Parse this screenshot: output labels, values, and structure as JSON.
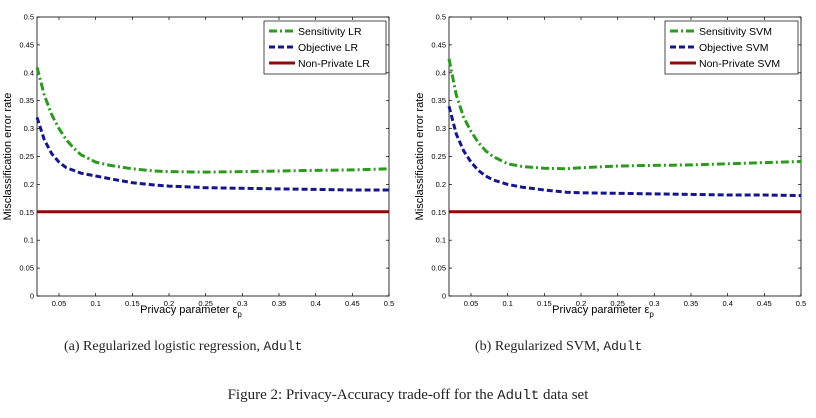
{
  "colors": {
    "sensitivity": "#2b9a1e",
    "objective": "#16168c",
    "nonprivate": "#8b0a0a"
  },
  "captions": {
    "a": {
      "label": "(a)",
      "text": "Regularized logistic regression,",
      "dataset": "Adult"
    },
    "b": {
      "label": "(b)",
      "text": "Regularized SVM,",
      "dataset": "Adult"
    },
    "figure": {
      "prefix": "Figure 2: Privacy-Accuracy trade-off for the",
      "dataset": "Adult",
      "suffix": "data set"
    }
  },
  "chart_data": [
    {
      "type": "line",
      "xlabel": "Privacy parameter ε",
      "xlabel_subscript": "p",
      "ylabel": "Misclassification error rate",
      "xlim": [
        0.02,
        0.5
      ],
      "ylim": [
        0,
        0.5
      ],
      "xticks": [
        0.05,
        0.1,
        0.15,
        0.2,
        0.25,
        0.3,
        0.35,
        0.4,
        0.45,
        0.5
      ],
      "xtick_labels": [
        "0.05",
        "0.1",
        "0.15",
        "0.2",
        "0.25",
        "0.3",
        "0.35",
        "0.4",
        "0.45",
        "0.5"
      ],
      "yticks": [
        0,
        0.05,
        0.1,
        0.15,
        0.2,
        0.25,
        0.3,
        0.35,
        0.4,
        0.45,
        0.5
      ],
      "ytick_labels": [
        "0",
        "0.05",
        "0.1",
        "0.15",
        "0.2",
        "0.25",
        "0.3",
        "0.35",
        "0.4",
        "0.45",
        "0.5"
      ],
      "legend_position": "top-right",
      "grid": false,
      "series": [
        {
          "name": "Sensitivity LR",
          "style": "dashdot",
          "color_key": "sensitivity",
          "x": [
            0.02,
            0.03,
            0.04,
            0.05,
            0.06,
            0.07,
            0.08,
            0.1,
            0.12,
            0.15,
            0.18,
            0.2,
            0.25,
            0.3,
            0.35,
            0.4,
            0.45,
            0.5
          ],
          "y": [
            0.41,
            0.36,
            0.325,
            0.3,
            0.28,
            0.265,
            0.253,
            0.24,
            0.234,
            0.228,
            0.224,
            0.223,
            0.222,
            0.223,
            0.224,
            0.225,
            0.226,
            0.228
          ]
        },
        {
          "name": "Objective LR",
          "style": "dashed",
          "color_key": "objective",
          "x": [
            0.02,
            0.03,
            0.04,
            0.05,
            0.06,
            0.07,
            0.08,
            0.1,
            0.12,
            0.15,
            0.18,
            0.2,
            0.25,
            0.3,
            0.35,
            0.4,
            0.45,
            0.5
          ],
          "y": [
            0.32,
            0.28,
            0.255,
            0.24,
            0.23,
            0.225,
            0.22,
            0.215,
            0.21,
            0.203,
            0.199,
            0.197,
            0.194,
            0.193,
            0.192,
            0.191,
            0.19,
            0.19
          ]
        },
        {
          "name": "Non-Private LR",
          "style": "solid",
          "color_key": "nonprivate",
          "x": [
            0.02,
            0.5
          ],
          "y": [
            0.151,
            0.151
          ]
        }
      ]
    },
    {
      "type": "line",
      "xlabel": "Privacy parameter ε",
      "xlabel_subscript": "p",
      "ylabel": "Misclassification error rate",
      "xlim": [
        0.02,
        0.5
      ],
      "ylim": [
        0,
        0.5
      ],
      "xticks": [
        0.05,
        0.1,
        0.15,
        0.2,
        0.25,
        0.3,
        0.35,
        0.4,
        0.45,
        0.5
      ],
      "xtick_labels": [
        "0.05",
        "0.1",
        "0.15",
        "0.2",
        "0.25",
        "0.3",
        "0.35",
        "0.4",
        "0.45",
        "0.5"
      ],
      "yticks": [
        0,
        0.05,
        0.1,
        0.15,
        0.2,
        0.25,
        0.3,
        0.35,
        0.4,
        0.45,
        0.5
      ],
      "ytick_labels": [
        "0",
        "0.05",
        "0.1",
        "0.15",
        "0.2",
        "0.25",
        "0.3",
        "0.35",
        "0.4",
        "0.45",
        "0.5"
      ],
      "legend_position": "top-right",
      "grid": false,
      "series": [
        {
          "name": "Sensitivity SVM",
          "style": "dashdot",
          "color_key": "sensitivity",
          "x": [
            0.02,
            0.03,
            0.04,
            0.05,
            0.06,
            0.07,
            0.08,
            0.1,
            0.12,
            0.15,
            0.18,
            0.2,
            0.25,
            0.3,
            0.35,
            0.4,
            0.45,
            0.5
          ],
          "y": [
            0.425,
            0.36,
            0.32,
            0.295,
            0.275,
            0.26,
            0.25,
            0.237,
            0.232,
            0.229,
            0.228,
            0.23,
            0.233,
            0.234,
            0.235,
            0.237,
            0.239,
            0.241
          ]
        },
        {
          "name": "Objective SVM",
          "style": "dashed",
          "color_key": "objective",
          "x": [
            0.02,
            0.03,
            0.04,
            0.05,
            0.06,
            0.07,
            0.08,
            0.1,
            0.12,
            0.15,
            0.18,
            0.2,
            0.25,
            0.3,
            0.35,
            0.4,
            0.45,
            0.5
          ],
          "y": [
            0.34,
            0.29,
            0.26,
            0.24,
            0.225,
            0.215,
            0.208,
            0.2,
            0.195,
            0.19,
            0.186,
            0.185,
            0.184,
            0.183,
            0.182,
            0.181,
            0.181,
            0.18
          ]
        },
        {
          "name": "Non-Private SVM",
          "style": "solid",
          "color_key": "nonprivate",
          "x": [
            0.02,
            0.5
          ],
          "y": [
            0.151,
            0.151
          ]
        }
      ]
    }
  ]
}
